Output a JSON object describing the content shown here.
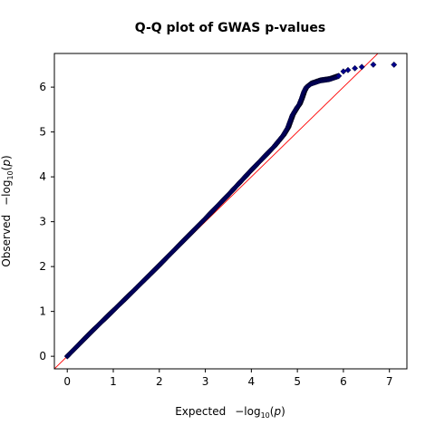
{
  "chart_data": {
    "type": "scatter",
    "title": "Q-Q plot of GWAS p-values",
    "xlabel": {
      "prefix": "Expected",
      "func": "−log",
      "sub": "10",
      "open": "(",
      "var": "p",
      "close": ")"
    },
    "ylabel": {
      "prefix": "Observed",
      "func": "−log",
      "sub": "10",
      "open": "(",
      "var": "p",
      "close": ")"
    },
    "xlim": [
      -0.28,
      7.38
    ],
    "ylim": [
      -0.28,
      6.75
    ],
    "xticks": [
      "0",
      "1",
      "2",
      "3",
      "4",
      "5",
      "6",
      "7"
    ],
    "yticks": [
      "0",
      "1",
      "2",
      "3",
      "4",
      "5",
      "6"
    ],
    "grid": false,
    "reference_line": {
      "type": "y=x",
      "color": "#ff0000"
    },
    "marker": {
      "shape": "diamond",
      "fill": "#00008b"
    },
    "series": [
      {
        "points": [
          [
            0,
            0
          ],
          [
            0.5,
            0.52
          ],
          [
            1.0,
            1.02
          ],
          [
            1.5,
            1.52
          ],
          [
            2.0,
            2.03
          ],
          [
            2.5,
            2.55
          ],
          [
            3.0,
            3.07
          ],
          [
            3.5,
            3.6
          ],
          [
            4.0,
            4.15
          ],
          [
            4.5,
            4.68
          ],
          [
            4.7,
            4.93
          ],
          [
            4.8,
            5.1
          ],
          [
            4.9,
            5.38
          ],
          [
            5.0,
            5.55
          ],
          [
            5.05,
            5.62
          ],
          [
            5.1,
            5.75
          ],
          [
            5.15,
            5.9
          ],
          [
            5.2,
            6.0
          ],
          [
            5.3,
            6.08
          ],
          [
            5.5,
            6.15
          ],
          [
            5.7,
            6.18
          ],
          [
            5.9,
            6.25
          ],
          [
            6.0,
            6.35
          ],
          [
            6.1,
            6.38
          ],
          [
            6.25,
            6.42
          ],
          [
            6.4,
            6.45
          ],
          [
            6.65,
            6.5
          ],
          [
            7.1,
            6.5
          ]
        ]
      }
    ]
  }
}
